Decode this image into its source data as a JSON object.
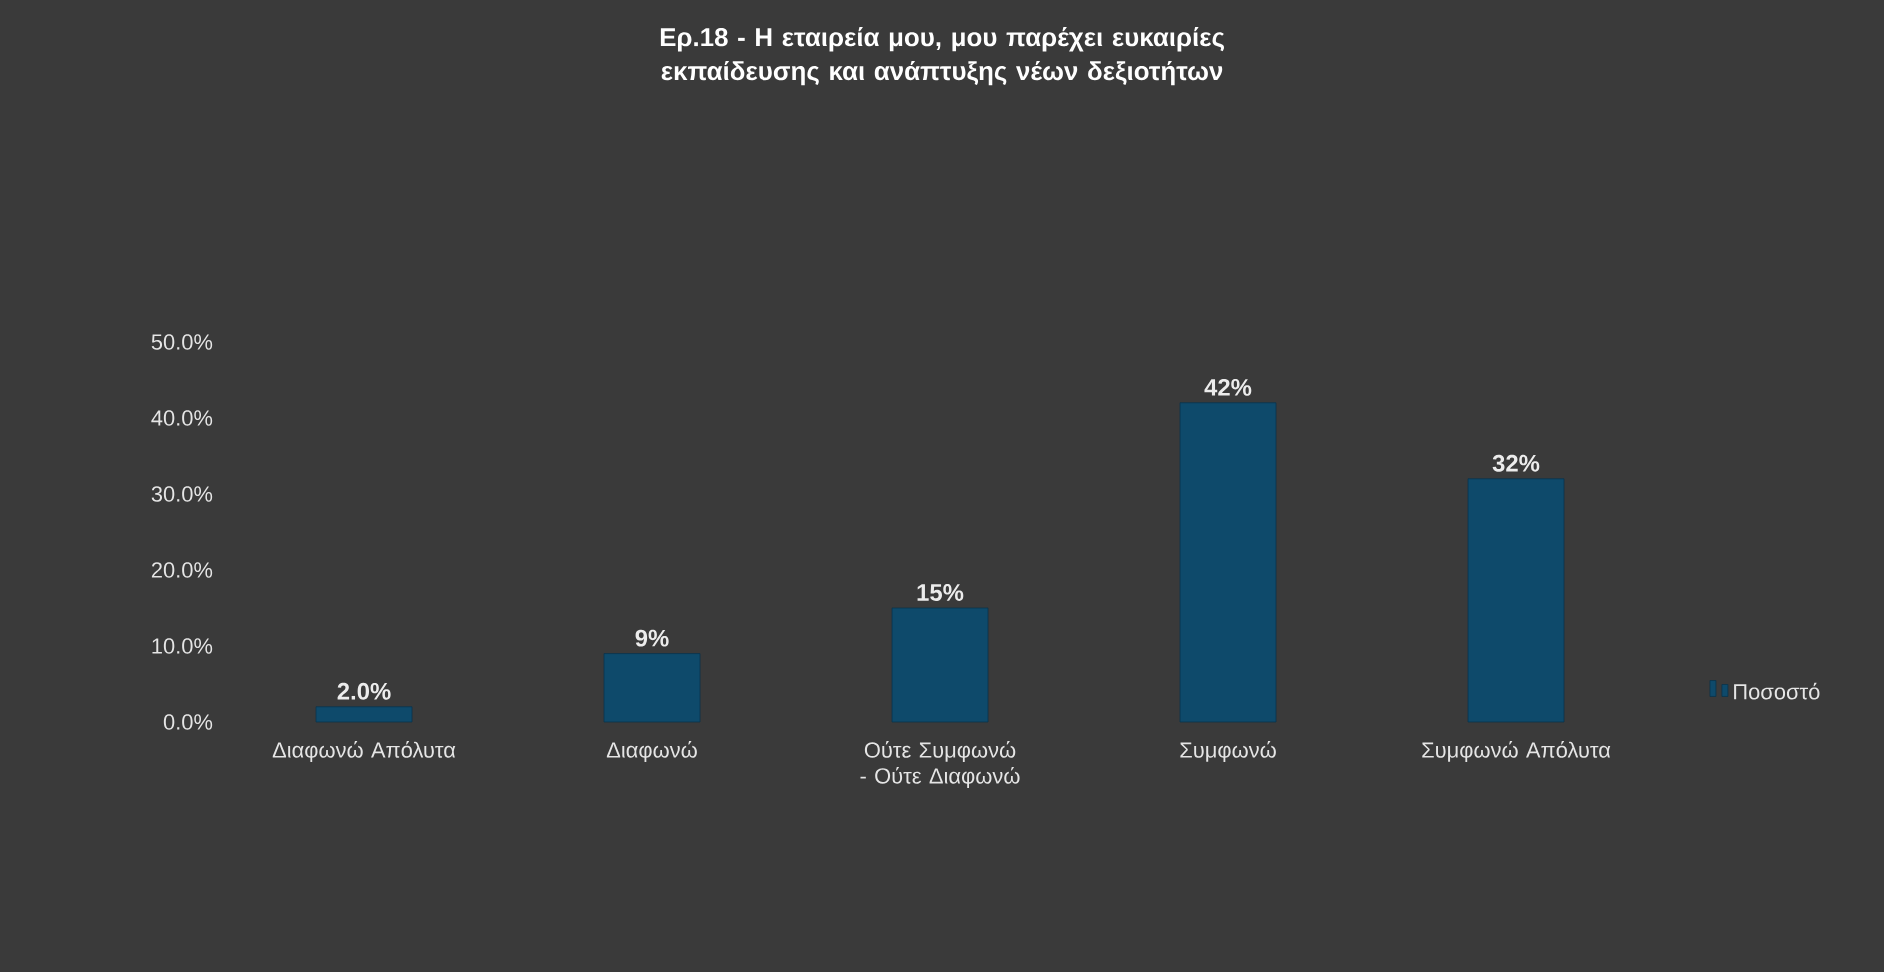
{
  "chart_data": {
    "type": "bar",
    "title": "Ερ.18 -    Η εταιρεία μου, μου παρέχει ευκαιρίες εκπαίδευσης και ανάπτυξης νέων δεξιοτήτων",
    "categories": [
      "Διαφωνώ Απόλυτα",
      "Διαφωνώ",
      "Ούτε Συμφωνώ - Ούτε Διαφωνώ",
      "Συμφωνώ",
      "Συμφωνώ Απόλυτα"
    ],
    "series": [
      {
        "name": "Ποσοστό",
        "color": "#0e4a6b",
        "values": [
          2.0,
          9,
          15,
          42,
          32
        ],
        "value_labels": [
          "2.0%",
          "9%",
          "15%",
          "42%",
          "32%"
        ]
      }
    ],
    "ylim": [
      0,
      50
    ],
    "yticks": [
      {
        "value": 0,
        "label": "0.0%"
      },
      {
        "value": 10,
        "label": "10.0%"
      },
      {
        "value": 20,
        "label": "20.0%"
      },
      {
        "value": 30,
        "label": "30.0%"
      },
      {
        "value": 40,
        "label": "40.0%"
      },
      {
        "value": 50,
        "label": "50.0%"
      }
    ],
    "legend": "right"
  }
}
